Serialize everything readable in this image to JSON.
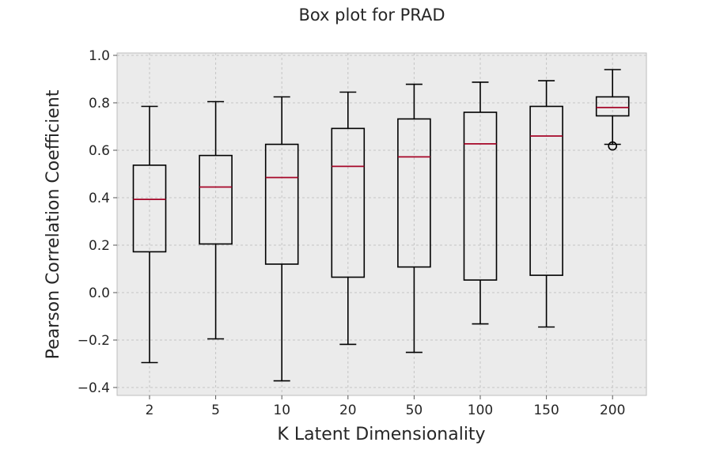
{
  "chart_data": {
    "type": "box",
    "title": "Box plot for PRAD",
    "xlabel": "K Latent Dimensionality",
    "ylabel": "Pearson Correlation Coefficient",
    "ylim": [
      -0.44,
      1.0
    ],
    "yticks": [
      -0.4,
      -0.2,
      0.0,
      0.2,
      0.4,
      0.6,
      0.8,
      1.0
    ],
    "ytick_labels": [
      "−0.4",
      "−0.2",
      "0.0",
      "0.2",
      "0.4",
      "0.6",
      "0.8",
      "1.0"
    ],
    "categories": [
      "2",
      "5",
      "10",
      "20",
      "50",
      "100",
      "150",
      "200"
    ],
    "grid": true,
    "colors": {
      "plot_background": "#ebebeb",
      "box": "#000000",
      "median": "#a60628",
      "grid": "#c4c4c4"
    },
    "boxes": [
      {
        "category": "2",
        "whisker_low": -0.295,
        "q1": 0.172,
        "median": 0.393,
        "q3": 0.537,
        "whisker_high": 0.785,
        "outliers": []
      },
      {
        "category": "5",
        "whisker_low": -0.195,
        "q1": 0.205,
        "median": 0.445,
        "q3": 0.578,
        "whisker_high": 0.805,
        "outliers": []
      },
      {
        "category": "10",
        "whisker_low": -0.372,
        "q1": 0.12,
        "median": 0.485,
        "q3": 0.625,
        "whisker_high": 0.825,
        "outliers": []
      },
      {
        "category": "20",
        "whisker_low": -0.218,
        "q1": 0.065,
        "median": 0.532,
        "q3": 0.692,
        "whisker_high": 0.845,
        "outliers": []
      },
      {
        "category": "50",
        "whisker_low": -0.252,
        "q1": 0.108,
        "median": 0.572,
        "q3": 0.732,
        "whisker_high": 0.878,
        "outliers": []
      },
      {
        "category": "100",
        "whisker_low": -0.132,
        "q1": 0.053,
        "median": 0.627,
        "q3": 0.76,
        "whisker_high": 0.887,
        "outliers": []
      },
      {
        "category": "150",
        "whisker_low": -0.145,
        "q1": 0.073,
        "median": 0.66,
        "q3": 0.785,
        "whisker_high": 0.893,
        "outliers": []
      },
      {
        "category": "200",
        "whisker_low": 0.625,
        "q1": 0.745,
        "median": 0.78,
        "q3": 0.825,
        "whisker_high": 0.94,
        "outliers": [
          0.618
        ]
      }
    ]
  }
}
